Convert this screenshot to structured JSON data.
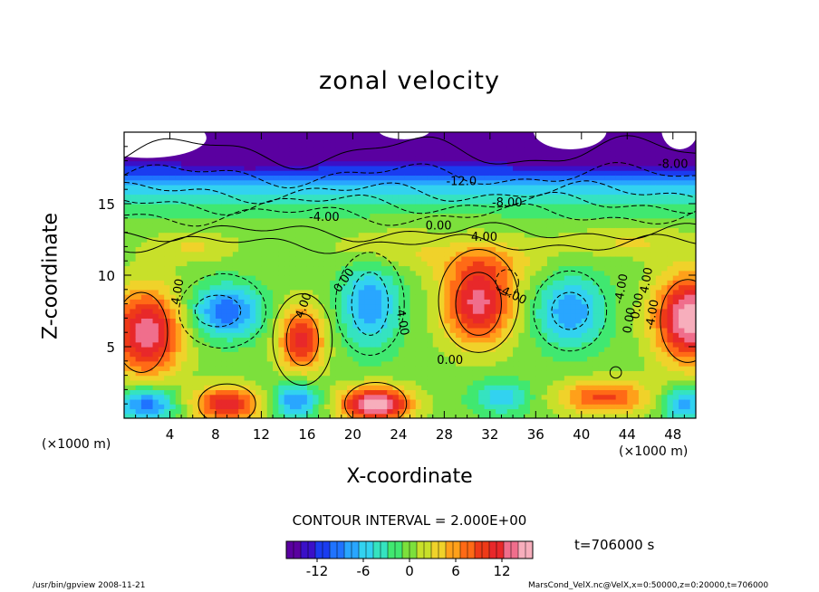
{
  "chart_data": {
    "type": "heatmap",
    "title": "zonal velocity",
    "xlabel": "X-coordinate",
    "ylabel": "Z-coordinate",
    "x_units": "(×1000 m)",
    "xlim": [
      0,
      50
    ],
    "ylim": [
      0,
      20
    ],
    "x_ticks": [
      4,
      8,
      12,
      16,
      20,
      24,
      28,
      32,
      36,
      40,
      44,
      48
    ],
    "y_ticks": [
      5,
      10,
      15
    ],
    "colorbar": {
      "min": -16,
      "max": 16,
      "ticks": [
        -12,
        -6,
        0,
        6,
        12
      ],
      "colors": [
        "#5a00a0",
        "#3a10c8",
        "#1a3cf0",
        "#1f73ff",
        "#29a6ff",
        "#32d2f0",
        "#35e3c0",
        "#40e870",
        "#7ce03c",
        "#c8e02a",
        "#f0d22a",
        "#ffa01a",
        "#ff6a16",
        "#ee3a18",
        "#e8282a",
        "#f06e8c",
        "#f7aebc"
      ]
    },
    "contour_interval": "CONTOUR INTERVAL = 2.000E+00",
    "contour_labels": [
      "-12.0",
      "-8.00",
      "-4.00",
      "4.00",
      "0.00",
      "4.00",
      "-4.00",
      "0.00",
      "4.00",
      "-4.00",
      "0.00",
      "-4.00",
      "0.00",
      "-8.00",
      "-4.00",
      "0.00",
      "4.00"
    ]
  },
  "time_label": "t=706000 s",
  "footer": {
    "left": "/usr/bin/gpview   2008-11-21",
    "right": "MarsCond_VelX.nc@VelX,x=0:50000,z=0:20000,t=706000"
  }
}
